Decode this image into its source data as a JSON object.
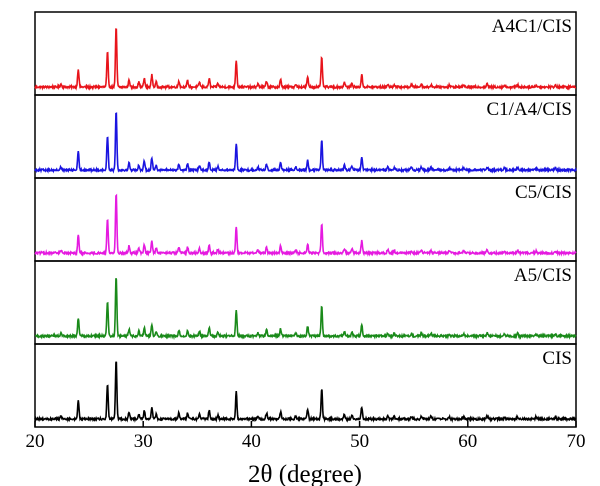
{
  "chart_data": {
    "type": "line",
    "xlabel": "2θ (degree)",
    "ylabel": "",
    "xlim": [
      20,
      70
    ],
    "x_ticks": [
      20,
      30,
      40,
      50,
      60,
      70
    ],
    "grid": false,
    "peaks": [
      {
        "x": 22.4,
        "h": 0.05
      },
      {
        "x": 24.0,
        "h": 0.3
      },
      {
        "x": 26.7,
        "h": 0.58
      },
      {
        "x": 27.5,
        "h": 1.0
      },
      {
        "x": 28.7,
        "h": 0.12
      },
      {
        "x": 29.6,
        "h": 0.08
      },
      {
        "x": 30.1,
        "h": 0.14
      },
      {
        "x": 30.8,
        "h": 0.2
      },
      {
        "x": 31.2,
        "h": 0.08
      },
      {
        "x": 33.3,
        "h": 0.1
      },
      {
        "x": 34.1,
        "h": 0.1
      },
      {
        "x": 35.2,
        "h": 0.08
      },
      {
        "x": 36.1,
        "h": 0.14
      },
      {
        "x": 36.9,
        "h": 0.06
      },
      {
        "x": 38.6,
        "h": 0.45
      },
      {
        "x": 40.6,
        "h": 0.05
      },
      {
        "x": 41.4,
        "h": 0.1
      },
      {
        "x": 42.7,
        "h": 0.12
      },
      {
        "x": 44.1,
        "h": 0.05
      },
      {
        "x": 45.2,
        "h": 0.16
      },
      {
        "x": 46.5,
        "h": 0.5
      },
      {
        "x": 48.6,
        "h": 0.08
      },
      {
        "x": 49.3,
        "h": 0.06
      },
      {
        "x": 50.2,
        "h": 0.2
      },
      {
        "x": 52.6,
        "h": 0.05
      },
      {
        "x": 53.2,
        "h": 0.04
      },
      {
        "x": 54.8,
        "h": 0.04
      },
      {
        "x": 55.7,
        "h": 0.05
      },
      {
        "x": 56.6,
        "h": 0.04
      },
      {
        "x": 58.3,
        "h": 0.03
      },
      {
        "x": 59.6,
        "h": 0.04
      },
      {
        "x": 61.8,
        "h": 0.05
      },
      {
        "x": 63.4,
        "h": 0.03
      },
      {
        "x": 64.6,
        "h": 0.04
      },
      {
        "x": 66.3,
        "h": 0.03
      },
      {
        "x": 68.1,
        "h": 0.03
      }
    ],
    "series": [
      {
        "name": "A4C1/CIS",
        "color": "#e8141b"
      },
      {
        "name": "C1/A4/CIS",
        "color": "#1a14e0"
      },
      {
        "name": "C5/CIS",
        "color": "#e51ae0"
      },
      {
        "name": "A5/CIS",
        "color": "#1a8a1a"
      },
      {
        "name": "CIS",
        "color": "#000000"
      }
    ]
  }
}
